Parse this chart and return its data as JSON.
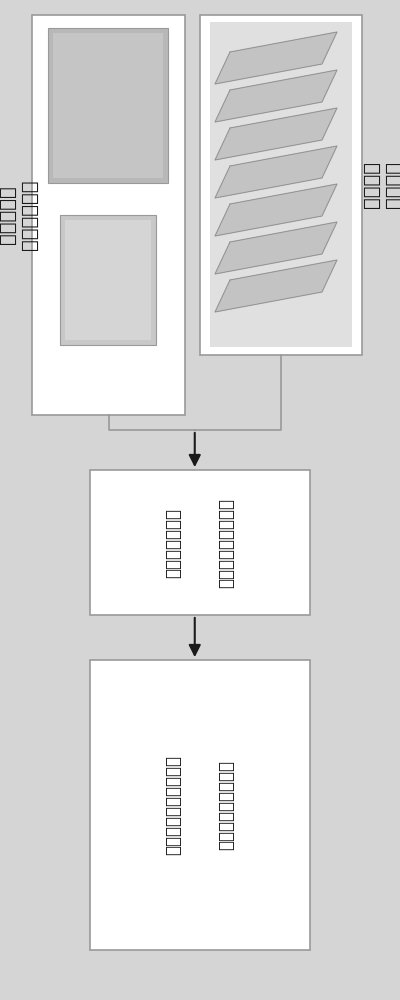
{
  "bg_color": "#d5d5d5",
  "box_color": "#ffffff",
  "box_edge_color": "#999999",
  "text_color": "#1a1a1a",
  "arrow_color": "#1a1a1a",
  "label_left": "蜜蜂与草莓\n监测信息获取",
  "label_right": "生长环境\n监测系统",
  "mid_text1": "多源异构传感器信号",
  "mid_text2": "采集与处理系统",
  "bot_text1": "草莓与蜜蜂复合设施",
  "bot_text2": "生态环境智能构建方法"
}
